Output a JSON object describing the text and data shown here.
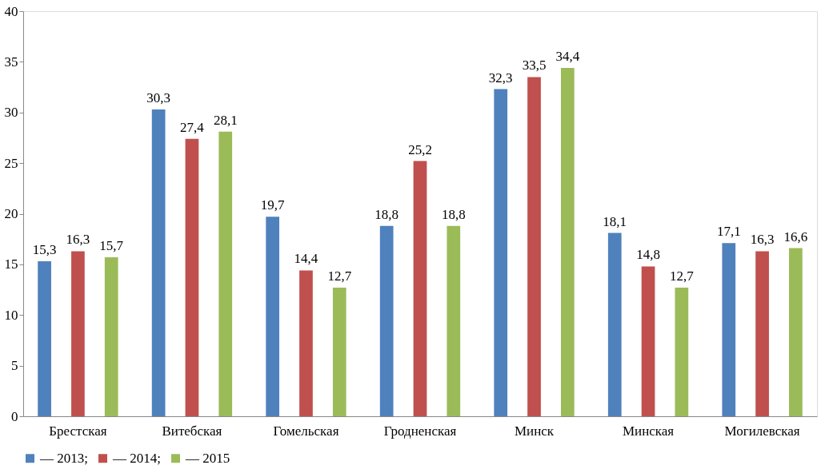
{
  "chart_data": {
    "type": "bar",
    "categories": [
      "Брестская",
      "Витебская",
      "Гомельская",
      "Гродненская",
      "Минск",
      "Минская",
      "Могилевская"
    ],
    "series": [
      {
        "name": "— 2013;",
        "color": "#4f81bd",
        "values": [
          15.3,
          30.3,
          19.7,
          18.8,
          32.3,
          18.1,
          17.1
        ]
      },
      {
        "name": "— 2014;",
        "color": "#c0504d",
        "values": [
          16.3,
          27.4,
          14.4,
          25.2,
          33.5,
          14.8,
          16.3
        ]
      },
      {
        "name": "— 2015",
        "color": "#9bbb59",
        "values": [
          15.7,
          28.1,
          12.7,
          18.8,
          34.4,
          12.7,
          16.6
        ]
      }
    ],
    "value_labels": [
      [
        "15,3",
        "30,3",
        "19,7",
        "18,8",
        "32,3",
        "18,1",
        "17,1"
      ],
      [
        "16,3",
        "27,4",
        "14,4",
        "25,2",
        "33,5",
        "14,8",
        "16,3"
      ],
      [
        "15,7",
        "28,1",
        "12,7",
        "18,8",
        "34,4",
        "12,7",
        "16,6"
      ]
    ],
    "ylim": [
      0,
      40
    ],
    "yticks": [
      0,
      5,
      10,
      15,
      20,
      25,
      30,
      35,
      40
    ],
    "grid": false,
    "legend": "bottom"
  }
}
